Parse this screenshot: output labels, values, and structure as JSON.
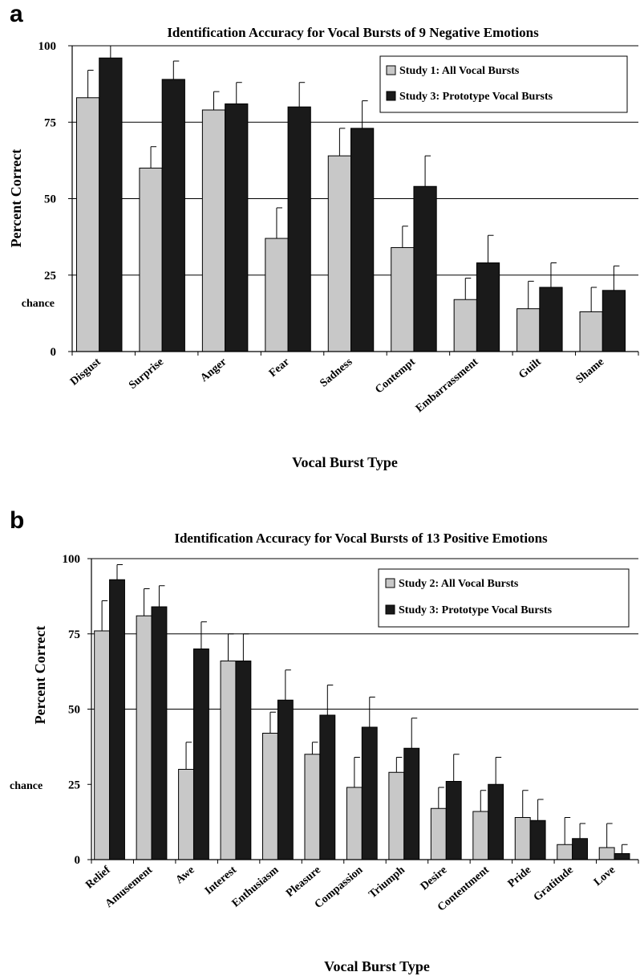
{
  "chart_data": [
    {
      "type": "bar",
      "panel": "a",
      "title": "Identification Accuracy for Vocal Bursts of 9 Negative Emotions",
      "xlabel": "Vocal Burst Type",
      "ylabel": "Percent Correct",
      "ylim": [
        0,
        100
      ],
      "yticks": [
        0,
        25,
        50,
        75,
        100
      ],
      "chance_label": "chance",
      "chance_value": 16,
      "grid": true,
      "legend_position": "top-right",
      "categories": [
        "Disgust",
        "Surprise",
        "Anger",
        "Fear",
        "Sadness",
        "Contempt",
        "Embarrassment",
        "Guilt",
        "Shame"
      ],
      "series": [
        {
          "name": "Study 1: All Vocal Bursts",
          "color": "#c8c8c8",
          "values": [
            83,
            60,
            79,
            37,
            64,
            34,
            17,
            14,
            13
          ],
          "errors": [
            9,
            7,
            6,
            10,
            9,
            7,
            7,
            9,
            8
          ]
        },
        {
          "name": "Study 3: Prototype Vocal Bursts",
          "color": "#1a1a1a",
          "values": [
            96,
            89,
            81,
            80,
            73,
            54,
            29,
            21,
            20
          ],
          "errors": [
            4,
            6,
            7,
            8,
            9,
            10,
            9,
            8,
            8
          ]
        }
      ]
    },
    {
      "type": "bar",
      "panel": "b",
      "title": "Identification Accuracy for Vocal Bursts of 13 Positive Emotions",
      "xlabel": "Vocal Burst Type",
      "ylabel": "Percent Correct",
      "ylim": [
        0,
        100
      ],
      "yticks": [
        0,
        25,
        50,
        75,
        100
      ],
      "chance_label": "chance",
      "chance_value": 25,
      "grid": true,
      "legend_position": "top-right",
      "categories": [
        "Relief",
        "Amusement",
        "Awe",
        "Interest",
        "Enthusiasm",
        "Pleasure",
        "Compassion",
        "Triumph",
        "Desire",
        "Contentment",
        "Pride",
        "Gratitude",
        "Love"
      ],
      "series": [
        {
          "name": "Study 2: All Vocal Bursts",
          "color": "#c8c8c8",
          "values": [
            76,
            81,
            30,
            66,
            42,
            35,
            24,
            29,
            17,
            16,
            14,
            5,
            4
          ],
          "errors": [
            10,
            9,
            9,
            9,
            7,
            4,
            10,
            5,
            7,
            7,
            9,
            9,
            8
          ]
        },
        {
          "name": "Study 3: Prototype Vocal Bursts",
          "color": "#1a1a1a",
          "values": [
            93,
            84,
            70,
            66,
            53,
            48,
            44,
            37,
            26,
            25,
            13,
            7,
            2
          ],
          "errors": [
            5,
            7,
            9,
            9,
            10,
            10,
            10,
            10,
            9,
            9,
            7,
            5,
            3
          ]
        }
      ]
    }
  ]
}
